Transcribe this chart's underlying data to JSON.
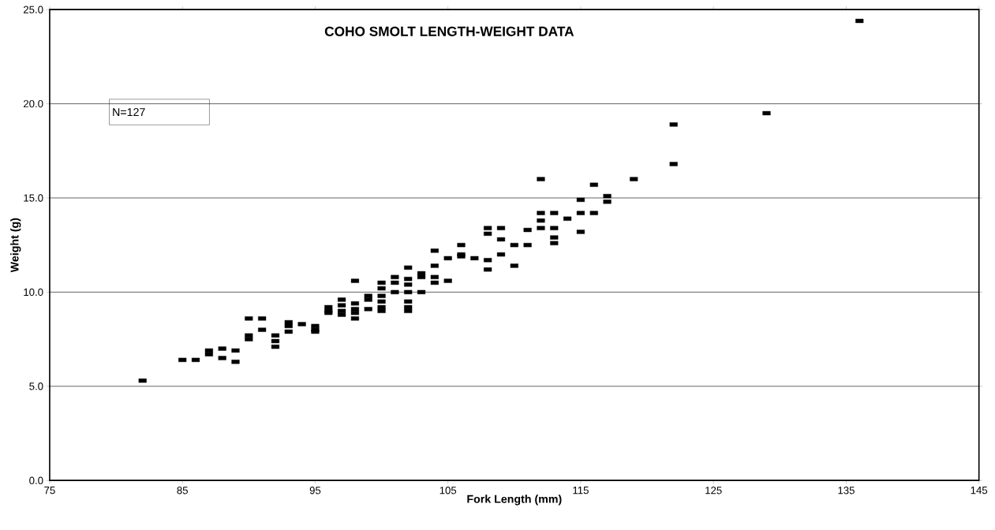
{
  "chart_data": {
    "type": "scatter",
    "title": "COHO SMOLT LENGTH-WEIGHT DATA",
    "xlabel": "Fork Length (mm)",
    "ylabel": "Weight (g)",
    "annotations": [
      "N=127"
    ],
    "x": [
      82,
      85,
      86,
      87,
      87,
      88,
      88,
      89,
      89,
      90,
      90,
      90,
      91,
      91,
      92,
      92,
      92,
      93,
      93,
      93,
      94,
      95,
      95,
      95,
      96,
      96,
      96,
      97,
      97,
      97,
      97,
      98,
      98,
      98,
      98,
      98,
      99,
      99,
      99,
      100,
      100,
      100,
      100,
      100,
      100,
      101,
      101,
      101,
      102,
      102,
      102,
      102,
      102,
      102,
      102,
      103,
      103,
      103,
      104,
      104,
      104,
      104,
      105,
      105,
      106,
      106,
      106,
      107,
      108,
      108,
      108,
      108,
      109,
      109,
      109,
      110,
      110,
      111,
      111,
      112,
      112,
      112,
      112,
      113,
      113,
      113,
      113,
      114,
      115,
      115,
      115,
      116,
      116,
      117,
      117,
      119,
      122,
      122,
      129,
      136
    ],
    "values": [
      5.3,
      6.4,
      6.4,
      6.9,
      6.7,
      7.0,
      6.5,
      6.9,
      6.3,
      8.6,
      7.7,
      7.5,
      8.6,
      8.0,
      7.7,
      7.4,
      7.1,
      8.4,
      8.2,
      7.9,
      8.3,
      8.2,
      8.0,
      7.9,
      9.2,
      9.0,
      8.9,
      9.6,
      9.3,
      9.0,
      8.8,
      10.6,
      9.4,
      9.1,
      8.9,
      8.6,
      9.8,
      9.6,
      9.1,
      10.5,
      10.2,
      9.8,
      9.5,
      9.2,
      9.0,
      10.8,
      10.5,
      10.0,
      11.3,
      10.7,
      10.4,
      10.0,
      9.5,
      9.2,
      9.0,
      11.0,
      10.8,
      10.0,
      12.2,
      11.4,
      10.8,
      10.5,
      11.8,
      10.6,
      12.5,
      12.0,
      11.9,
      11.8,
      13.4,
      13.1,
      11.7,
      11.2,
      13.4,
      12.8,
      12.0,
      12.5,
      11.4,
      12.5,
      13.3,
      16.0,
      14.2,
      13.8,
      13.4,
      14.2,
      13.4,
      12.9,
      12.6,
      13.9,
      14.9,
      14.2,
      13.2,
      15.7,
      14.2,
      15.1,
      14.8,
      16.0,
      18.9,
      16.8,
      19.5,
      24.4
    ],
    "color": "#000000",
    "marker": "square",
    "grid": "y",
    "xlim": [
      75,
      145
    ],
    "xticks": [
      75,
      85,
      95,
      105,
      115,
      125,
      135,
      145
    ],
    "ylim": [
      0,
      25
    ],
    "yticks": [
      {
        "value": 0,
        "label": "0.0"
      },
      {
        "value": 5,
        "label": "5.0"
      },
      {
        "value": 10,
        "label": "10.0"
      },
      {
        "value": 15,
        "label": "15.0"
      },
      {
        "value": 20,
        "label": "20.0"
      },
      {
        "value": 25,
        "label": "25.0"
      }
    ]
  }
}
